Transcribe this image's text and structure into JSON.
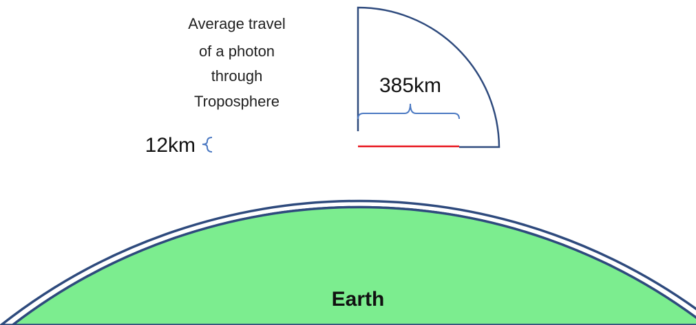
{
  "caption": {
    "lines": [
      "Average travel",
      "of a photon",
      "through",
      "Troposphere"
    ]
  },
  "labels": {
    "distance": "385km",
    "thickness": "12km",
    "earth": "Earth"
  },
  "colors": {
    "earth_fill": "#7ced8f",
    "outline": "#2e4a7d",
    "brace": "#4a78c2",
    "photon_path": "#e8131b"
  }
}
